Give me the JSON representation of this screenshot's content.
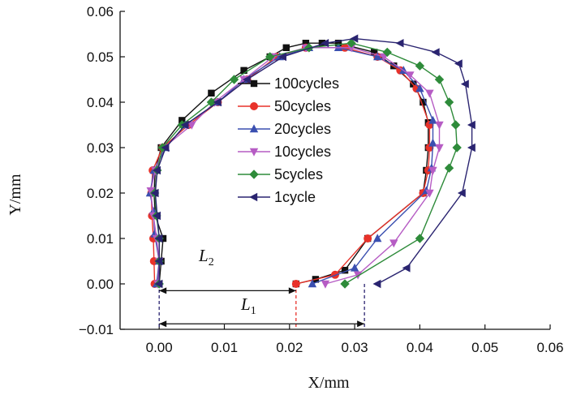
{
  "chart_data": {
    "type": "line",
    "xlabel": "X/mm",
    "ylabel": "Y/mm",
    "xlim": [
      -0.006,
      0.06
    ],
    "ylim": [
      -0.01,
      0.06
    ],
    "x_ticks": [
      "0.00",
      "0.01",
      "0.02",
      "0.03",
      "0.04",
      "0.05",
      "0.06"
    ],
    "y_ticks": [
      "−0.01",
      "0.00",
      "0.01",
      "0.02",
      "0.03",
      "0.04",
      "0.05",
      "0.06"
    ],
    "grid": false,
    "legend_position": "center",
    "annotations": {
      "L1": "L",
      "L1_sub": "1",
      "L2": "L",
      "L2_sub": "2"
    },
    "series": [
      {
        "name": "100cycles",
        "color": "#111111",
        "marker": "square",
        "points": [
          [
            0.0,
            0.0
          ],
          [
            0.0003,
            0.005
          ],
          [
            0.0006,
            0.01
          ],
          [
            -0.0006,
            0.015
          ],
          [
            -0.0008,
            0.02
          ],
          [
            -0.0006,
            0.025
          ],
          [
            0.0003,
            0.03
          ],
          [
            0.0035,
            0.036
          ],
          [
            0.008,
            0.042
          ],
          [
            0.013,
            0.047
          ],
          [
            0.017,
            0.05
          ],
          [
            0.0195,
            0.052
          ],
          [
            0.0225,
            0.053
          ],
          [
            0.025,
            0.053
          ],
          [
            0.0275,
            0.053
          ],
          [
            0.033,
            0.051
          ],
          [
            0.036,
            0.048
          ],
          [
            0.039,
            0.044
          ],
          [
            0.0405,
            0.04
          ],
          [
            0.0413,
            0.0355
          ],
          [
            0.0413,
            0.03
          ],
          [
            0.041,
            0.025
          ],
          [
            0.0405,
            0.02
          ],
          [
            0.032,
            0.01
          ],
          [
            0.0285,
            0.003
          ],
          [
            0.024,
            0.001
          ],
          [
            0.021,
            0.0
          ]
        ]
      },
      {
        "name": "50cycles",
        "color": "#e8322a",
        "marker": "circle",
        "points": [
          [
            -0.0007,
            0.0
          ],
          [
            -0.0008,
            0.005
          ],
          [
            -0.0009,
            0.01
          ],
          [
            -0.0011,
            0.015
          ],
          [
            -0.0012,
            0.02
          ],
          [
            -0.001,
            0.025
          ],
          [
            0.0005,
            0.03
          ],
          [
            0.0045,
            0.035
          ],
          [
            0.009,
            0.04
          ],
          [
            0.0135,
            0.045
          ],
          [
            0.018,
            0.05
          ],
          [
            0.0225,
            0.052
          ],
          [
            0.0285,
            0.052
          ],
          [
            0.0335,
            0.05
          ],
          [
            0.037,
            0.047
          ],
          [
            0.0395,
            0.043
          ],
          [
            0.0415,
            0.035
          ],
          [
            0.0415,
            0.03
          ],
          [
            0.0413,
            0.025
          ],
          [
            0.0405,
            0.02
          ],
          [
            0.032,
            0.01
          ],
          [
            0.027,
            0.002
          ],
          [
            0.021,
            0.0
          ]
        ]
      },
      {
        "name": "20cycles",
        "color": "#3a4fb0",
        "marker": "triangle-up",
        "points": [
          [
            -0.0004,
            0.0
          ],
          [
            0.0,
            0.005
          ],
          [
            -0.0007,
            0.011
          ],
          [
            -0.0009,
            0.016
          ],
          [
            -0.0014,
            0.02
          ],
          [
            -0.0008,
            0.025
          ],
          [
            0.001,
            0.03
          ],
          [
            0.004,
            0.035
          ],
          [
            0.009,
            0.04
          ],
          [
            0.013,
            0.045
          ],
          [
            0.0185,
            0.05
          ],
          [
            0.023,
            0.052
          ],
          [
            0.0275,
            0.052
          ],
          [
            0.0335,
            0.05
          ],
          [
            0.0375,
            0.047
          ],
          [
            0.04,
            0.043
          ],
          [
            0.042,
            0.036
          ],
          [
            0.042,
            0.031
          ],
          [
            0.0418,
            0.0255
          ],
          [
            0.041,
            0.0205
          ],
          [
            0.0335,
            0.01
          ],
          [
            0.03,
            0.0035
          ],
          [
            0.0235,
            0.0
          ]
        ]
      },
      {
        "name": "10cycles",
        "color": "#b65cc4",
        "marker": "triangle-down",
        "points": [
          [
            -0.0002,
            0.0
          ],
          [
            0.0,
            0.005
          ],
          [
            -0.0004,
            0.01
          ],
          [
            -0.0009,
            0.015
          ],
          [
            -0.0013,
            0.0205
          ],
          [
            -0.0006,
            0.025
          ],
          [
            0.0007,
            0.03
          ],
          [
            0.005,
            0.035
          ],
          [
            0.0085,
            0.04
          ],
          [
            0.013,
            0.045
          ],
          [
            0.0175,
            0.05
          ],
          [
            0.0225,
            0.052
          ],
          [
            0.0295,
            0.052
          ],
          [
            0.0345,
            0.05
          ],
          [
            0.0385,
            0.046
          ],
          [
            0.0415,
            0.042
          ],
          [
            0.043,
            0.035
          ],
          [
            0.043,
            0.03
          ],
          [
            0.042,
            0.025
          ],
          [
            0.0415,
            0.02
          ],
          [
            0.036,
            0.009
          ],
          [
            0.0305,
            0.002
          ],
          [
            0.0255,
            0.0
          ]
        ]
      },
      {
        "name": "5cycles",
        "color": "#2e8b3a",
        "marker": "diamond",
        "points": [
          [
            0.0,
            0.0
          ],
          [
            0.0,
            0.005
          ],
          [
            0.0,
            0.01
          ],
          [
            -0.0004,
            0.015
          ],
          [
            -0.0007,
            0.02
          ],
          [
            -0.0003,
            0.025
          ],
          [
            0.0005,
            0.03
          ],
          [
            0.0035,
            0.035
          ],
          [
            0.008,
            0.04
          ],
          [
            0.0115,
            0.045
          ],
          [
            0.017,
            0.05
          ],
          [
            0.023,
            0.052
          ],
          [
            0.0295,
            0.053
          ],
          [
            0.035,
            0.051
          ],
          [
            0.04,
            0.048
          ],
          [
            0.043,
            0.045
          ],
          [
            0.0445,
            0.04
          ],
          [
            0.0455,
            0.035
          ],
          [
            0.0457,
            0.03
          ],
          [
            0.0445,
            0.0255
          ],
          [
            0.04,
            0.01
          ],
          [
            0.0285,
            0.0
          ]
        ]
      },
      {
        "name": "1cycle",
        "color": "#2a2470",
        "marker": "triangle-left",
        "points": [
          [
            0.0,
            0.0
          ],
          [
            0.0,
            0.005
          ],
          [
            0.0,
            0.01
          ],
          [
            -0.0003,
            0.015
          ],
          [
            -0.0006,
            0.02
          ],
          [
            -0.0003,
            0.025
          ],
          [
            0.001,
            0.03
          ],
          [
            0.004,
            0.035
          ],
          [
            0.009,
            0.04
          ],
          [
            0.0135,
            0.045
          ],
          [
            0.019,
            0.05
          ],
          [
            0.0255,
            0.053
          ],
          [
            0.03,
            0.054
          ],
          [
            0.037,
            0.053
          ],
          [
            0.0425,
            0.051
          ],
          [
            0.046,
            0.0485
          ],
          [
            0.047,
            0.044
          ],
          [
            0.048,
            0.035
          ],
          [
            0.048,
            0.03
          ],
          [
            0.0465,
            0.02
          ],
          [
            0.038,
            0.0035
          ],
          [
            0.0335,
            0.0
          ]
        ]
      }
    ]
  }
}
